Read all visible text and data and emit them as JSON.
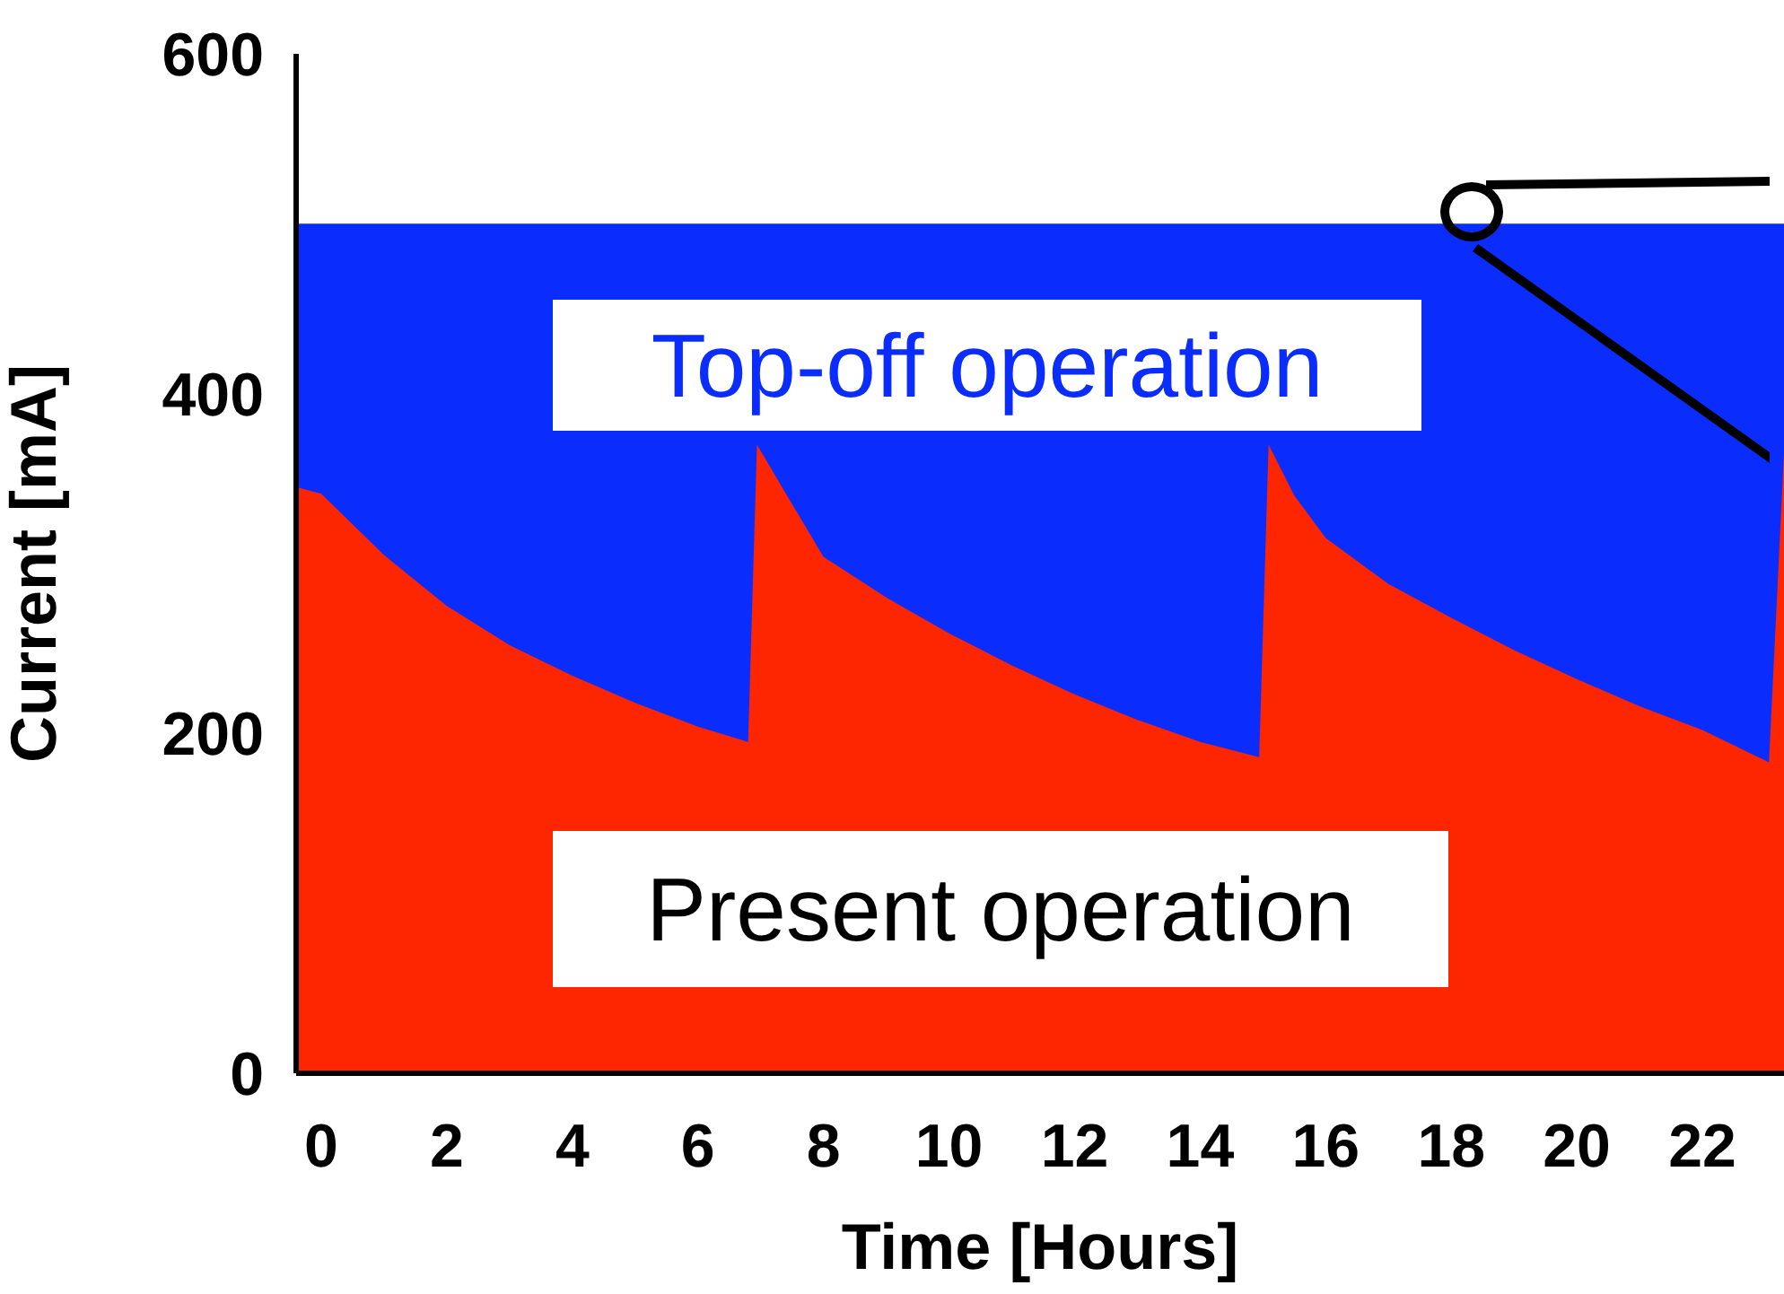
{
  "chart_data": {
    "type": "area",
    "xlabel": "Time [Hours]",
    "ylabel": "Current [mA]",
    "x": [
      -0.4,
      0,
      1,
      2,
      3,
      4,
      5,
      6,
      6.8,
      6.94,
      7.5,
      8,
      9,
      10,
      11,
      12,
      13,
      14,
      14.94,
      15.09,
      15.5,
      16,
      17,
      18,
      19,
      20,
      21,
      22,
      23.06,
      23.3
    ],
    "series": [
      {
        "name": "Top-off operation",
        "color": "#0a2dfd",
        "x": [
          -0.4,
          23.3
        ],
        "values": [
          500,
          500
        ]
      },
      {
        "name": "Present operation",
        "color": "#fe2600",
        "values": [
          345,
          341,
          305,
          275,
          252,
          234,
          218,
          204,
          195,
          370,
          335,
          304,
          280,
          259,
          240,
          223,
          208,
          195,
          186,
          370,
          340,
          315,
          288,
          268,
          249,
          232,
          216,
          202,
          183,
          365
        ]
      }
    ],
    "xlim": [
      -0.4,
      23.3
    ],
    "xticks": [
      0,
      2,
      4,
      6,
      8,
      10,
      12,
      14,
      16,
      18,
      20,
      22
    ],
    "ylim": [
      0,
      600
    ],
    "yticks": [
      0,
      200,
      400,
      600
    ],
    "grid": false,
    "legend": false
  }
}
